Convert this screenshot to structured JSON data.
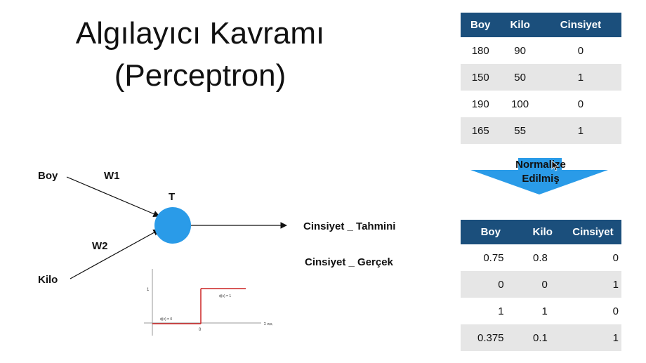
{
  "title": {
    "line1": "Algılayıcı Kavramı",
    "line2": "(Perceptron)"
  },
  "diagram": {
    "input1": "Boy",
    "input2": "Kilo",
    "weight1": "W1",
    "weight2": "W2",
    "node": "T",
    "output_predicted": "Cinsiyet _ Tahmini",
    "output_actual": "Cinsiyet _ Gerçek"
  },
  "step_plot": {
    "y_tick": "1",
    "x_tick": "0",
    "left_label": "ϕ(x) = 0",
    "right_label": "ϕ(x) = 1",
    "x_axis_label": "Σ wᵢxᵢ",
    "line_color": "#cc2222"
  },
  "arrow": {
    "label_line1": "Normalize",
    "label_line2": "Edilmiş",
    "color": "#2a9be8"
  },
  "table_raw": {
    "headers": [
      "Boy",
      "Kilo",
      "Cinsiyet"
    ],
    "rows": [
      [
        "180",
        "90",
        "0"
      ],
      [
        "150",
        "50",
        "1"
      ],
      [
        "190",
        "100",
        "0"
      ],
      [
        "165",
        "55",
        "1"
      ]
    ]
  },
  "table_normalized": {
    "headers": [
      "Boy",
      "Kilo",
      "Cinsiyet"
    ],
    "rows": [
      [
        "0.75",
        "0.8",
        "0"
      ],
      [
        "0",
        "0",
        "1"
      ],
      [
        "1",
        "1",
        "0"
      ],
      [
        "0.375",
        "0.1",
        "1"
      ]
    ]
  },
  "colors": {
    "table_header": "#1b4f7c",
    "row_shade": "#e6e6e6",
    "node_fill": "#2a9be8"
  }
}
